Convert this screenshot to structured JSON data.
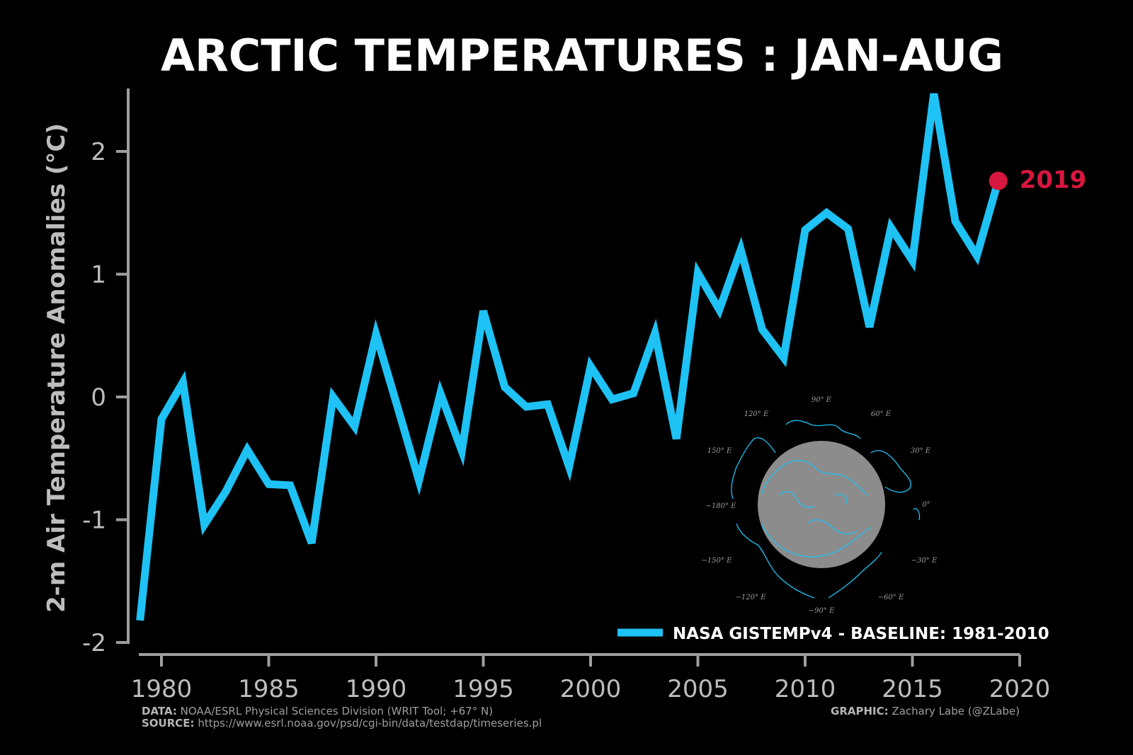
{
  "colors": {
    "background": "#000000",
    "line": "#1ec2f4",
    "highlight": "#d8173f",
    "axis": "#9e9e9e",
    "text": "#bdbdbd",
    "map_disc": "#8c8c8c",
    "map_coast": "#1ec2f4"
  },
  "chart_data": {
    "type": "line",
    "title": "ARCTIC TEMPERATURES : JAN-AUG",
    "xlabel": "",
    "ylabel": "2-m Air Temperature Anomalies (°C)",
    "xlim": [
      1979,
      2020
    ],
    "ylim": [
      -2,
      2.5
    ],
    "xticks": [
      1980,
      1985,
      1990,
      1995,
      2000,
      2005,
      2010,
      2015,
      2020
    ],
    "yticks": [
      -2,
      -1,
      0,
      1,
      2
    ],
    "grid": false,
    "legend_position": "bottom-right",
    "series": [
      {
        "name": "NASA GISTEMPv4 - BASELINE: 1981-2010",
        "x": [
          1979,
          1980,
          1981,
          1982,
          1983,
          1984,
          1985,
          1986,
          1987,
          1988,
          1989,
          1990,
          1991,
          1992,
          1993,
          1994,
          1995,
          1996,
          1997,
          1998,
          1999,
          2000,
          2001,
          2002,
          2003,
          2004,
          2005,
          2006,
          2007,
          2008,
          2009,
          2010,
          2011,
          2012,
          2013,
          2014,
          2015,
          2016,
          2017,
          2018,
          2019
        ],
        "y": [
          -1.82,
          -0.18,
          0.12,
          -1.04,
          -0.77,
          -0.43,
          -0.71,
          -0.72,
          -1.19,
          0.0,
          -0.24,
          0.51,
          -0.08,
          -0.68,
          0.03,
          -0.44,
          0.7,
          0.08,
          -0.08,
          -0.06,
          -0.57,
          0.25,
          -0.02,
          0.03,
          0.52,
          -0.34,
          1.01,
          0.71,
          1.2,
          0.55,
          0.32,
          1.36,
          1.5,
          1.37,
          0.57,
          1.38,
          1.11,
          2.47,
          1.43,
          1.15,
          1.76
        ]
      }
    ],
    "highlight": {
      "year": 2019,
      "value": 1.76,
      "label": "2019"
    }
  },
  "inset_map": {
    "labels": [
      "90° E",
      "120° E",
      "60° E",
      "150° E",
      "30° E",
      "−180° E",
      "0°",
      "−150° E",
      "−30° E",
      "−120° E",
      "−60° E",
      "−90° E"
    ]
  },
  "footer": {
    "data_label": "DATA:",
    "data_text": "NOAA/ESRL Physical Sciences Division (WRIT Tool; +67° N)",
    "source_label": "SOURCE:",
    "source_text": "https://www.esrl.noaa.gov/psd/cgi-bin/data/testdap/timeseries.pl",
    "graphic_label": "GRAPHIC:",
    "graphic_text": "Zachary Labe (@ZLabe)"
  }
}
